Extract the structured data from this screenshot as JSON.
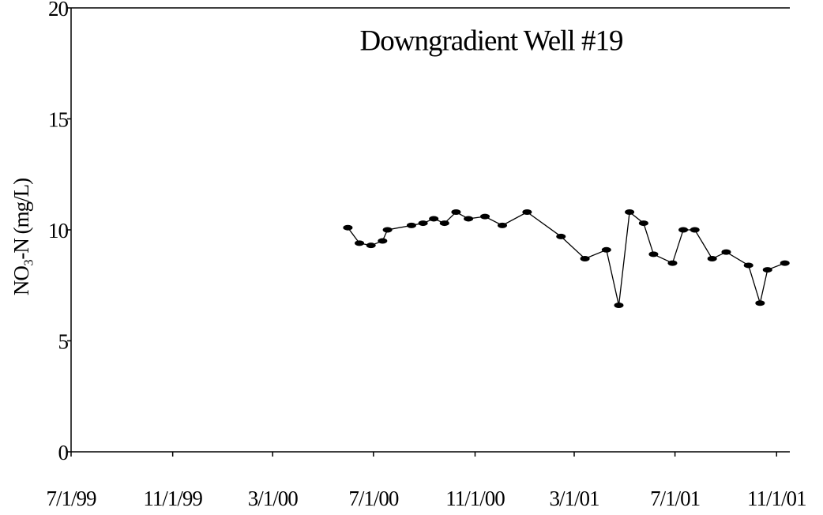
{
  "chart_data": {
    "type": "line",
    "title": "Downgradient Well #19",
    "ylabel": "NO₃-N (mg/L)",
    "x": [
      "5/31/00",
      "6/14/00",
      "6/28/00",
      "7/12/00",
      "7/18/00",
      "8/16/00",
      "8/30/00",
      "9/12/00",
      "9/25/00",
      "10/9/00",
      "10/24/00",
      "11/13/00",
      "12/4/00",
      "1/3/01",
      "2/13/01",
      "3/14/01",
      "4/9/01",
      "4/24/01",
      "5/7/01",
      "5/24/01",
      "6/5/01",
      "6/28/01",
      "7/11/01",
      "7/25/01",
      "8/15/01",
      "9/1/01",
      "9/28/01",
      "10/12/01",
      "10/21/01",
      "11/11/01"
    ],
    "series": [
      {
        "color": "#000000",
        "values": [
          10.1,
          9.4,
          9.3,
          9.5,
          10.0,
          10.2,
          10.3,
          10.5,
          10.3,
          10.8,
          10.5,
          10.6,
          10.2,
          10.8,
          9.7,
          8.7,
          9.1,
          6.6,
          10.8,
          10.3,
          8.9,
          8.5,
          10.0,
          10.0,
          8.7,
          9.0,
          8.4,
          6.7,
          8.2,
          8.5
        ]
      }
    ],
    "xlim": [
      "7/1/99",
      "11/17/01"
    ],
    "xticks": [
      "7/1/99",
      "11/1/99",
      "3/1/00",
      "7/1/00",
      "11/1/00",
      "3/1/01",
      "7/1/01",
      "11/1/01"
    ],
    "ylim": [
      0,
      20
    ],
    "yticks": [
      0,
      5,
      10,
      15,
      20
    ],
    "grid": false
  }
}
